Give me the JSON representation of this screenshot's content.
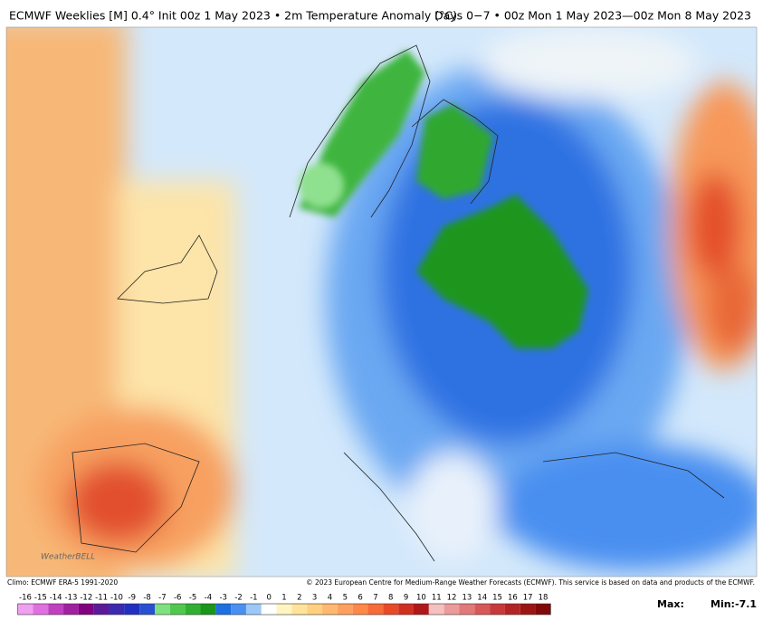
{
  "header": {
    "title_left": "ECMWF Weeklies [M] 0.4° Init 00z 1 May 2023 • 2m Temperature Anomaly (°C)",
    "title_right": "Days 0−7 • 00z Mon 1 May 2023—00z Mon 8 May 2023"
  },
  "footer": {
    "climo": "Climo: ECMWF ERA-5 1991-2020",
    "copyright": "© 2023 European Centre for Medium-Range Weather Forecasts (ECMWF). This service is based on data and products of the ECMWF.",
    "logo": "WeatherBELL",
    "max_label": "Max:",
    "min_label": "Min:",
    "min_value": "-7.1"
  },
  "colorbar": {
    "ticks": [
      -16,
      -15,
      -14,
      -13,
      -12,
      -11,
      -10,
      -9,
      -8,
      -7,
      -6,
      -5,
      -4,
      -3,
      -2,
      -1,
      0,
      1,
      2,
      3,
      4,
      5,
      6,
      7,
      8,
      9,
      10,
      11,
      12,
      13,
      14,
      15,
      16,
      17,
      18
    ],
    "colors": [
      "#f0a0f0",
      "#e070e0",
      "#c040c0",
      "#a020a0",
      "#800080",
      "#5a1a9a",
      "#3a2ab0",
      "#2030c0",
      "#2850d0",
      "#7fe07f",
      "#50c850",
      "#30b030",
      "#1a961a",
      "#1e6fe0",
      "#4a90f0",
      "#9cc8f8",
      "#ffffff",
      "#fff5c0",
      "#ffe39a",
      "#ffd080",
      "#ffb870",
      "#ffa060",
      "#ff8848",
      "#f86a38",
      "#e84a28",
      "#d03020",
      "#b01818",
      "#f4c0c0",
      "#ec9a9a",
      "#e27878",
      "#d85858",
      "#c83a3a",
      "#b42424",
      "#9c1414",
      "#800a0a"
    ]
  }
}
